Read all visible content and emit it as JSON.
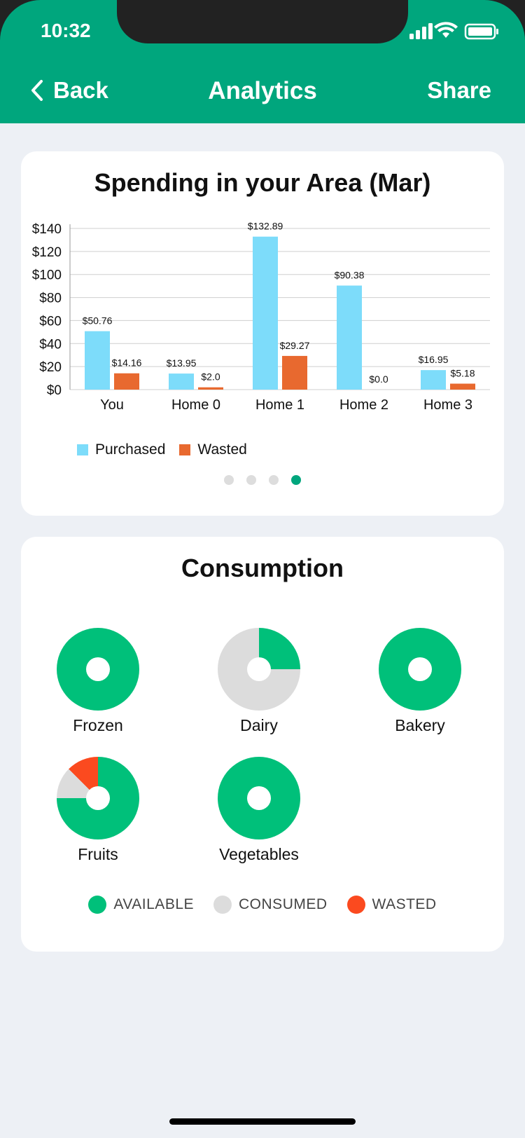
{
  "status": {
    "time": "10:32"
  },
  "nav": {
    "back_label": "Back",
    "title": "Analytics",
    "share_label": "Share"
  },
  "spending": {
    "title": "Spending in your Area (Mar)",
    "legend": [
      "Purchased",
      "Wasted"
    ],
    "page_dots": {
      "count": 4,
      "active": 4
    }
  },
  "chart_data": {
    "type": "bar",
    "title": "Spending in your Area (Mar)",
    "categories": [
      "You",
      "Home 0",
      "Home 1",
      "Home 2",
      "Home 3"
    ],
    "series": [
      {
        "name": "Purchased",
        "values": [
          50.76,
          13.95,
          132.89,
          90.38,
          16.95
        ],
        "labels": [
          "$50.76",
          "$13.95",
          "$132.89",
          "$90.38",
          "$16.95"
        ],
        "color": "#7ddcfa"
      },
      {
        "name": "Wasted",
        "values": [
          14.16,
          2.0,
          29.27,
          0.0,
          5.18
        ],
        "labels": [
          "$14.16",
          "$2.0",
          "$29.27",
          "$0.0",
          "$5.18"
        ],
        "color": "#e8692f"
      }
    ],
    "yticks": [
      "$0",
      "$20",
      "$40",
      "$60",
      "$80",
      "$100",
      "$120",
      "$140"
    ],
    "ylim": [
      0,
      140
    ],
    "grid": true,
    "legend_position": "bottom-left"
  },
  "consumption": {
    "title": "Consumption",
    "items": [
      {
        "label": "Frozen",
        "available": 1.0,
        "consumed": 0.0,
        "wasted": 0.0
      },
      {
        "label": "Dairy",
        "available": 0.25,
        "consumed": 0.75,
        "wasted": 0.0
      },
      {
        "label": "Bakery",
        "available": 1.0,
        "consumed": 0.0,
        "wasted": 0.0
      },
      {
        "label": "Fruits",
        "available": 0.75,
        "consumed": 0.125,
        "wasted": 0.125
      },
      {
        "label": "Vegetables",
        "available": 1.0,
        "consumed": 0.0,
        "wasted": 0.0
      }
    ],
    "legend": [
      {
        "label": "AVAILABLE",
        "color": "#00c07a"
      },
      {
        "label": "CONSUMED",
        "color": "#dcdcdc"
      },
      {
        "label": "WASTED",
        "color": "#fb4a1f"
      }
    ]
  },
  "colors": {
    "brand": "#00a67d",
    "purchased": "#7ddcfa",
    "wasted_bar": "#e8692f"
  }
}
